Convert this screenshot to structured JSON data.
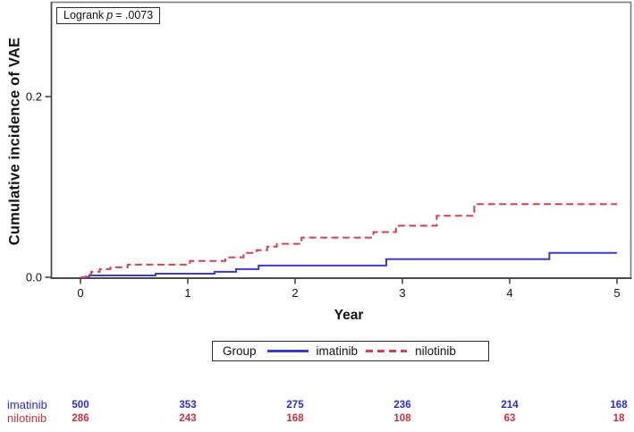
{
  "figure": {
    "annotation": {
      "prefix": "Logrank",
      "p_symbol": "p",
      "suffix": "= .0073"
    },
    "axes": {
      "x_label": "Year",
      "y_label": "Cumulative incidence of VAE"
    }
  },
  "legend": {
    "title": "Group",
    "items": [
      {
        "label": "imatinib",
        "line_style": "solid",
        "color": "#3c3ccd"
      },
      {
        "label": "nilotinib",
        "line_style": "dashed",
        "color": "#cf4452"
      }
    ]
  },
  "risk_table": {
    "rows": [
      {
        "label": "imatinib",
        "color": "#2b2bd0",
        "counts": [
          "500",
          "353",
          "275",
          "236",
          "214",
          "168"
        ]
      },
      {
        "label": "nilotinib",
        "color": "#c53240",
        "counts": [
          "286",
          "243",
          "168",
          "108",
          "63",
          "18"
        ]
      }
    ]
  },
  "chart_data": {
    "type": "line",
    "variant": "step-function-cumulative-incidence",
    "title": "",
    "xlabel": "Year",
    "ylabel": "Cumulative incidence of VAE",
    "xlim": [
      0,
      5.15
    ],
    "ylim": [
      0,
      0.305
    ],
    "x_ticks": [
      0,
      1,
      2,
      3,
      4,
      5
    ],
    "x_tick_labels": [
      "0",
      "1",
      "2",
      "3",
      "4",
      "5"
    ],
    "y_ticks": [
      0,
      0.2
    ],
    "y_tick_labels": [
      "0.0",
      "0.2"
    ],
    "grid": false,
    "frame": true,
    "legend_position": "bottom",
    "annotation": "Logrank p = .0073",
    "series": [
      {
        "name": "imatinib",
        "color": "#3c3ccd",
        "dash": "solid",
        "steps": [
          [
            0,
            0
          ],
          [
            0.08,
            0.002
          ],
          [
            0.7,
            0.004
          ],
          [
            1.25,
            0.006
          ],
          [
            1.45,
            0.009
          ],
          [
            1.66,
            0.013
          ],
          [
            2.85,
            0.02
          ],
          [
            4.37,
            0.027
          ],
          [
            5.0,
            0.027
          ]
        ]
      },
      {
        "name": "nilotinib",
        "color": "#cf4452",
        "dash": "dashed",
        "steps": [
          [
            0,
            0
          ],
          [
            0.05,
            0.003
          ],
          [
            0.1,
            0.006
          ],
          [
            0.18,
            0.009
          ],
          [
            0.28,
            0.011
          ],
          [
            0.44,
            0.014
          ],
          [
            1.02,
            0.018
          ],
          [
            1.35,
            0.022
          ],
          [
            1.52,
            0.027
          ],
          [
            1.64,
            0.03
          ],
          [
            1.74,
            0.034
          ],
          [
            1.83,
            0.037
          ],
          [
            2.06,
            0.044
          ],
          [
            2.73,
            0.05
          ],
          [
            2.94,
            0.057
          ],
          [
            3.32,
            0.068
          ],
          [
            3.67,
            0.081
          ],
          [
            5.0,
            0.081
          ]
        ]
      }
    ],
    "at_risk_times": [
      0,
      1,
      2,
      3,
      4,
      5
    ]
  }
}
